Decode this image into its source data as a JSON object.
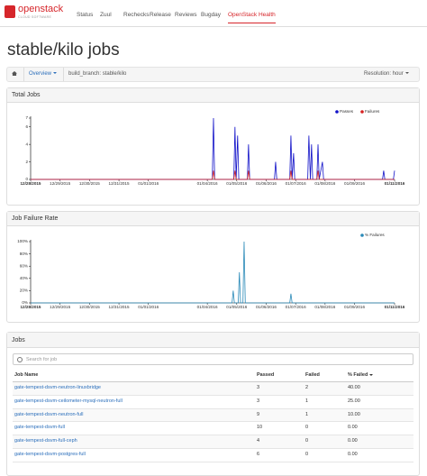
{
  "nav": {
    "logo": "openstack",
    "logo_sub": "CLOUD SOFTWARE",
    "links": [
      "Status",
      "Zuul",
      "Rechecks",
      "Release",
      "Reviews",
      "Bugday",
      "OpenStack Health"
    ]
  },
  "title": "stable/kilo jobs",
  "breadcrumb": {
    "view": "Overview",
    "filter": "build_branch: stable/kilo",
    "resolution": "Resolution: hour"
  },
  "chart_data": [
    {
      "type": "line",
      "title": "Total Jobs",
      "legend": "top-right",
      "grid": false,
      "x": [
        0,
        6.17,
        6.21,
        6.25,
        6.9,
        6.94,
        6.98,
        7.03,
        7.07,
        7.36,
        7.4,
        7.44,
        8.28,
        8.32,
        8.36,
        8.8,
        8.84,
        8.88,
        8.93,
        8.97,
        9.41,
        9.45,
        9.5,
        9.54,
        9.58,
        9.72,
        9.76,
        9.8,
        9.91,
        9.95,
        11.95,
        11.99,
        12.03,
        12.32,
        12.36
      ],
      "xlim": [
        0,
        12.36
      ],
      "xticks": [
        {
          "value": 0,
          "label": "12/28/2015"
        },
        {
          "value": 1,
          "label": "12/29/2015"
        },
        {
          "value": 2,
          "label": "12/30/2015"
        },
        {
          "value": 3,
          "label": "12/31/2015"
        },
        {
          "value": 4,
          "label": "01/01/2016"
        },
        {
          "value": 6,
          "label": "01/04/2016"
        },
        {
          "value": 7,
          "label": "01/05/2016"
        },
        {
          "value": 8,
          "label": "01/06/2016"
        },
        {
          "value": 9,
          "label": "01/07/2016"
        },
        {
          "value": 10,
          "label": "01/08/2016"
        },
        {
          "value": 11,
          "label": "01/09/2016"
        },
        {
          "value": 12.36,
          "label": "01/11/2016"
        }
      ],
      "ylim": [
        0,
        7
      ],
      "yticks": [
        0,
        2,
        4,
        6,
        7
      ],
      "series": [
        {
          "name": "Passes",
          "color": "#1010c8",
          "values": [
            0,
            0,
            7,
            0,
            0,
            6,
            0,
            5,
            0,
            0,
            4,
            0,
            0,
            2,
            0,
            0,
            5,
            0,
            3,
            0,
            0,
            5,
            0,
            4,
            0,
            0,
            4,
            0,
            2,
            0,
            0,
            1,
            0,
            0,
            1
          ]
        },
        {
          "name": "Failures",
          "color": "#d62020",
          "values": [
            0,
            0,
            1,
            0,
            0,
            1,
            0,
            0,
            0,
            0,
            1,
            0,
            0,
            0,
            0,
            0,
            1,
            0,
            0,
            0,
            0,
            0,
            0,
            0,
            0,
            0,
            1,
            0,
            0,
            0,
            0,
            0,
            0,
            0,
            0
          ]
        }
      ]
    },
    {
      "type": "line",
      "title": "Job Failure Rate",
      "legend": "top-right",
      "grid": false,
      "x": [
        0,
        6.84,
        6.88,
        6.92,
        7.05,
        7.09,
        7.13,
        7.21,
        7.25,
        7.29,
        8.8,
        8.84,
        8.88,
        12.36
      ],
      "xlim": [
        0,
        12.36
      ],
      "xticks": [
        {
          "value": 0,
          "label": "12/28/2015"
        },
        {
          "value": 1,
          "label": "12/29/2015"
        },
        {
          "value": 2,
          "label": "12/30/2015"
        },
        {
          "value": 3,
          "label": "12/31/2015"
        },
        {
          "value": 4,
          "label": "01/01/2016"
        },
        {
          "value": 6,
          "label": "01/04/2016"
        },
        {
          "value": 7,
          "label": "01/05/2016"
        },
        {
          "value": 8,
          "label": "01/06/2016"
        },
        {
          "value": 9,
          "label": "01/07/2016"
        },
        {
          "value": 10,
          "label": "01/08/2016"
        },
        {
          "value": 11,
          "label": "01/09/2016"
        },
        {
          "value": 12.36,
          "label": "01/11/2016"
        }
      ],
      "ylim": [
        0,
        100
      ],
      "yticks": [
        {
          "value": 0,
          "label": "0%"
        },
        {
          "value": 20,
          "label": "20%"
        },
        {
          "value": 40,
          "label": "40%"
        },
        {
          "value": 60,
          "label": "60%"
        },
        {
          "value": 80,
          "label": "80%"
        },
        {
          "value": 100,
          "label": "100%"
        }
      ],
      "series": [
        {
          "name": "% Failures",
          "color": "#2a8ab8",
          "values": [
            0,
            0,
            20,
            0,
            0,
            50,
            0,
            0,
            100,
            0,
            0,
            15,
            0,
            0
          ]
        }
      ]
    }
  ],
  "jobs": {
    "title": "Jobs",
    "search_placeholder": "Search for job",
    "columns": [
      "Job Name",
      "Passed",
      "Failed",
      "% Failed"
    ],
    "rows": [
      [
        "gate-tempest-dsvm-neutron-linuxbridge",
        "3",
        "2",
        "40.00"
      ],
      [
        "gate-tempest-dsvm-ceilometer-mysql-neutron-full",
        "3",
        "1",
        "25.00"
      ],
      [
        "gate-tempest-dsvm-neutron-full",
        "9",
        "1",
        "10.00"
      ],
      [
        "gate-tempest-dsvm-full",
        "10",
        "0",
        "0.00"
      ],
      [
        "gate-tempest-dsvm-full-ceph",
        "4",
        "0",
        "0.00"
      ],
      [
        "gate-tempest-dsvm-postgres-full",
        "6",
        "0",
        "0.00"
      ]
    ]
  }
}
